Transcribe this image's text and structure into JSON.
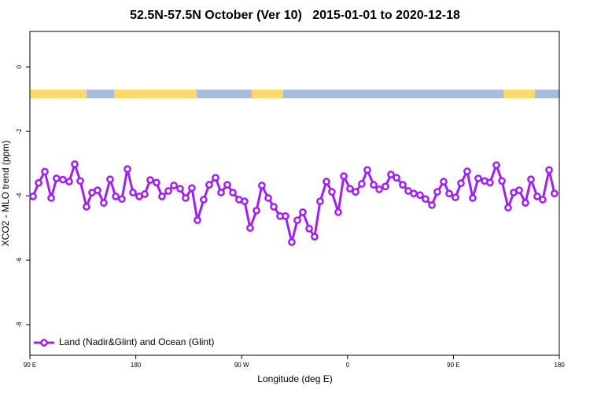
{
  "chart_data": {
    "type": "line",
    "title": "52.5N-57.5N October (Ver 10)   2015-01-01 to 2020-12-18",
    "x_label": "Longitude (deg E)",
    "y_label": "XCO2 - MLO trend (ppm)",
    "xlim": [
      90,
      540
    ],
    "ylim": [
      -8.95,
      1.1
    ],
    "xticks": [
      {
        "value": 90,
        "label": "90 E"
      },
      180,
      {
        "value": 270,
        "label": "90 W"
      },
      {
        "value": 360,
        "label": "0"
      },
      {
        "value": 450,
        "label": "90 E"
      },
      {
        "value": 540,
        "label": "180"
      }
    ],
    "yticks": [
      0,
      -2,
      -4,
      -6,
      -8
    ],
    "legend": "bottom-left",
    "x": [
      92.7,
      97.4,
      102.7,
      108.1,
      112.7,
      118.1,
      123.4,
      128.1,
      132.8,
      138.1,
      142.8,
      147.5,
      152.8,
      158.2,
      162.9,
      168.2,
      172.9,
      177.6,
      182.9,
      187.6,
      192.3,
      197.6,
      202.3,
      207.7,
      212.4,
      217.7,
      222.4,
      227.7,
      232.4,
      237.7,
      242.4,
      247.8,
      252.5,
      257.8,
      262.5,
      267.8,
      272.5,
      277.2,
      282.6,
      287.2,
      292.6,
      297.3,
      302.6,
      307.3,
      312.6,
      317.3,
      322.0,
      327.4,
      332.0,
      336.7,
      342.1,
      346.7,
      352.1,
      356.8,
      362.1,
      366.8,
      372.1,
      376.8,
      382.2,
      386.9,
      392.2,
      396.9,
      401.6,
      406.9,
      411.6,
      416.3,
      421.6,
      426.3,
      431.7,
      436.3,
      441.7,
      446.4,
      451.7,
      456.4,
      461.7,
      466.4,
      471.1,
      476.5,
      481.1,
      486.5,
      491.2,
      496.5,
      501.2,
      505.9,
      511.2,
      515.9,
      521.2,
      525.9,
      531.3,
      535.9
    ],
    "series": [
      {
        "name": "Land (Nadir&Glint) and Ocean (Glint)",
        "color": "#a020f0",
        "values": [
          -4.02,
          -3.6,
          -3.25,
          -4.07,
          -3.46,
          -3.5,
          -3.56,
          -3.02,
          -3.54,
          -4.34,
          -3.9,
          -3.83,
          -4.22,
          -3.49,
          -4.02,
          -4.1,
          -3.17,
          -3.9,
          -4.02,
          -3.95,
          -3.51,
          -3.59,
          -4.02,
          -3.85,
          -3.68,
          -3.78,
          -4.07,
          -3.76,
          -4.76,
          -4.12,
          -3.66,
          -3.44,
          -3.9,
          -3.66,
          -3.9,
          -4.12,
          -4.17,
          -5.0,
          -4.46,
          -3.68,
          -4.07,
          -4.34,
          -4.63,
          -4.63,
          -5.44,
          -4.76,
          -4.51,
          -5.02,
          -5.27,
          -4.17,
          -3.56,
          -3.88,
          -4.51,
          -3.39,
          -3.78,
          -3.88,
          -3.63,
          -3.2,
          -3.66,
          -3.8,
          -3.71,
          -3.34,
          -3.44,
          -3.66,
          -3.85,
          -3.93,
          -3.98,
          -4.1,
          -4.29,
          -3.88,
          -3.56,
          -3.93,
          -4.05,
          -3.61,
          -3.24,
          -4.07,
          -3.46,
          -3.54,
          -3.59,
          -3.05,
          -3.54,
          -4.37,
          -3.9,
          -3.83,
          -4.22,
          -3.49,
          -4.02,
          -4.12,
          -3.2,
          -3.93
        ]
      }
    ]
  }
}
